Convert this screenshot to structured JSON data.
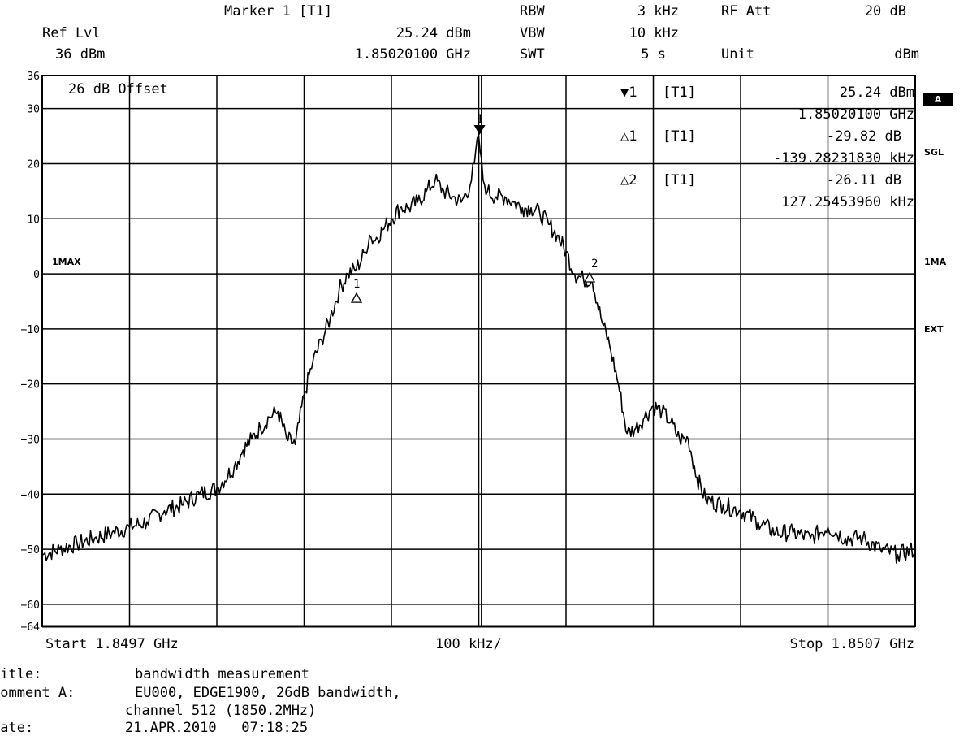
{
  "header": {
    "ref_lvl_label": "Ref Lvl",
    "ref_lvl_value": "36 dBm",
    "marker_title": "Marker 1 [T1]",
    "marker_level": "25.24 dBm",
    "marker_freq": "1.85020100 GHz",
    "rbw_label": "RBW",
    "rbw_value": "3 kHz",
    "vbw_label": "VBW",
    "vbw_value": "10 kHz",
    "swt_label": "SWT",
    "swt_value": "5 s",
    "rf_att_label": "RF Att",
    "rf_att_value": "20 dB",
    "unit_label": "Unit",
    "unit_value": "dBm"
  },
  "markers_table": {
    "m1_symbol": "▼1",
    "m1_tag": "[T1]",
    "m1_level": "25.24 dBm",
    "m1_freq": "1.85020100 GHz",
    "d1_symbol": "△1",
    "d1_tag": "[T1]",
    "d1_level": "-29.82 dB",
    "d1_freq": "-139.28231830 kHz",
    "d2_symbol": "△2",
    "d2_tag": "[T1]",
    "d2_level": "-26.11 dB",
    "d2_freq": "127.25453960 kHz"
  },
  "plot_labels": {
    "offset": "26 dB Offset",
    "trace_left": "1MAX",
    "side_a": "A",
    "side_sgl": "SGL",
    "side_1ma": "1MA",
    "side_ext": "EXT"
  },
  "footer_axis": {
    "start": "Start 1.8497 GHz",
    "span": "100 kHz/",
    "stop": "Stop 1.8507 GHz"
  },
  "footer_info": {
    "title_label": "Title:",
    "title_value": "bandwidth measurement",
    "comment_label": "Comment A:",
    "comment_line1": "EU000, EDGE1900, 26dB bandwidth,",
    "comment_line2": "channel 512 (1850.2MHz)",
    "date_label": "Date:",
    "date_value": "21.APR.2010   07:18:25"
  },
  "chart_data": {
    "type": "line",
    "title": "",
    "xlabel": "",
    "ylabel": "",
    "xlim": [
      1849.7,
      1850.7
    ],
    "ylim": [
      -64,
      36
    ],
    "x_unit": "MHz",
    "y_unit": "dBm",
    "y_ticks": [
      36,
      30,
      20,
      10,
      0,
      -10,
      -20,
      -30,
      -40,
      -50,
      -60,
      -64
    ],
    "grid": true,
    "series": [
      {
        "x": [
          1849.7,
          1849.72,
          1849.74,
          1849.76,
          1849.78,
          1849.8,
          1849.82,
          1849.84,
          1849.86,
          1849.88,
          1849.9,
          1849.92,
          1849.93,
          1849.94,
          1849.95,
          1849.96,
          1849.97,
          1849.98,
          1849.99,
          1850.0,
          1850.01,
          1850.02,
          1850.03,
          1850.04,
          1850.05,
          1850.06,
          1850.07,
          1850.075,
          1850.08,
          1850.09,
          1850.1,
          1850.11,
          1850.12,
          1850.13,
          1850.14,
          1850.15,
          1850.16,
          1850.17,
          1850.18,
          1850.19,
          1850.195,
          1850.2,
          1850.205,
          1850.21,
          1850.22,
          1850.23,
          1850.24,
          1850.25,
          1850.26,
          1850.27,
          1850.28,
          1850.29,
          1850.3,
          1850.31,
          1850.32,
          1850.33,
          1850.34,
          1850.35,
          1850.36,
          1850.37,
          1850.38,
          1850.39,
          1850.4,
          1850.41,
          1850.42,
          1850.43,
          1850.44,
          1850.45,
          1850.46,
          1850.48,
          1850.5,
          1850.52,
          1850.54,
          1850.56,
          1850.58,
          1850.6,
          1850.62,
          1850.64,
          1850.66,
          1850.68,
          1850.7
        ],
        "y": [
          -51,
          -50,
          -49,
          -48,
          -47,
          -46,
          -45,
          -43,
          -42,
          -40,
          -39,
          -35,
          -32,
          -30,
          -28,
          -26,
          -25,
          -30,
          -31,
          -22,
          -16,
          -12,
          -8,
          -3,
          0,
          1,
          4,
          7,
          6,
          8,
          10,
          12,
          12,
          13,
          15,
          17,
          15,
          14,
          13,
          16,
          20,
          25,
          17,
          15,
          14,
          14,
          13,
          12,
          12,
          11,
          9,
          7,
          4,
          0,
          -1,
          -1,
          -8,
          -13,
          -20,
          -29,
          -28,
          -26,
          -24,
          -25,
          -27,
          -30,
          -30,
          -37,
          -41,
          -42,
          -43,
          -45,
          -47,
          -47,
          -48,
          -46,
          -48,
          -48,
          -50,
          -51,
          -50
        ]
      }
    ],
    "markers": [
      {
        "label": "1",
        "x": 1850.201,
        "y": 25.24,
        "symbol": "filled-triangle"
      },
      {
        "label": "1",
        "x": 1850.06,
        "y": -4.58,
        "symbol": "open-triangle"
      },
      {
        "label": "2",
        "x": 1850.327,
        "y": -0.87,
        "symbol": "open-triangle"
      }
    ]
  }
}
